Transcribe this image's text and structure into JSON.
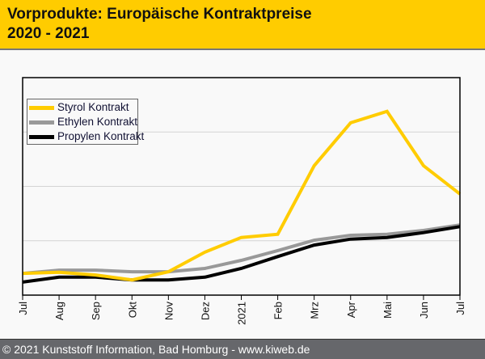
{
  "header": {
    "title_line1": "Vorprodukte: Europäische Kontraktpreise",
    "title_line2": "2020 - 2021",
    "background_color": "#ffcc00"
  },
  "footer": {
    "text": "© 2021 Kunststoff Information, Bad Homburg - www.kiweb.de"
  },
  "chart_data": {
    "type": "line",
    "title": "Vorprodukte: Europäische Kontraktpreise 2020 - 2021",
    "xlabel": "",
    "ylabel": "",
    "y_axis_labels_shown": false,
    "y_units_note": "relative index; no y tick labels shown, values in gridline units",
    "ylim": [
      0,
      4
    ],
    "y_gridlines": [
      1,
      2,
      3
    ],
    "grid": true,
    "legend_position": "top-left",
    "categories": [
      "Jul",
      "Aug",
      "Sep",
      "Okt",
      "Nov",
      "Dez",
      "2021",
      "Feb",
      "Mrz",
      "Apr",
      "Mai",
      "Jun",
      "Jul"
    ],
    "series": [
      {
        "name": "Styrol Kontrakt",
        "color": "#ffcc00",
        "values": [
          0.4,
          0.42,
          0.37,
          0.28,
          0.43,
          0.79,
          1.06,
          1.12,
          2.38,
          3.17,
          3.38,
          2.38,
          1.86
        ]
      },
      {
        "name": "Ethylen Kontrakt",
        "color": "#999999",
        "values": [
          0.4,
          0.46,
          0.46,
          0.43,
          0.43,
          0.49,
          0.64,
          0.82,
          1.01,
          1.1,
          1.12,
          1.19,
          1.29
        ]
      },
      {
        "name": "Propylen Kontrakt",
        "color": "#000000",
        "values": [
          0.24,
          0.33,
          0.33,
          0.28,
          0.28,
          0.33,
          0.49,
          0.71,
          0.92,
          1.03,
          1.06,
          1.15,
          1.26
        ]
      }
    ]
  }
}
